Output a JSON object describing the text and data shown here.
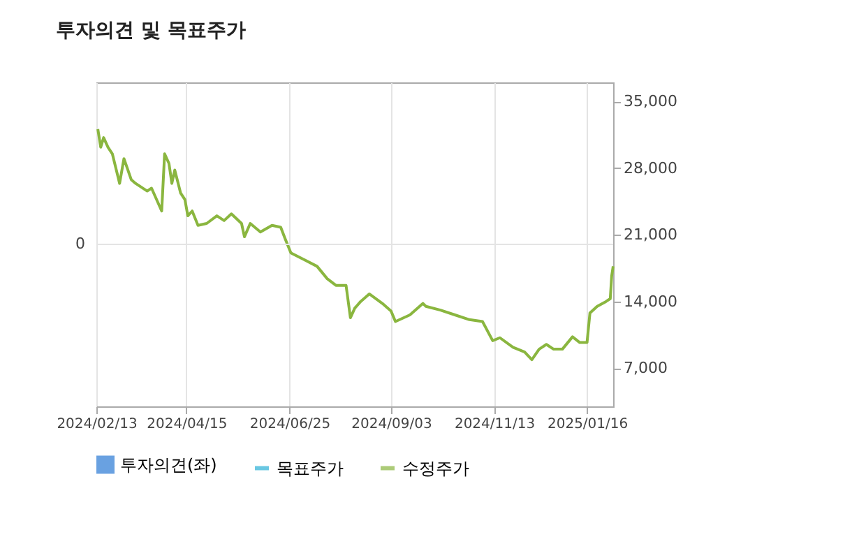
{
  "chart_data": {
    "type": "line",
    "title": "투자의견 및 목표주가",
    "x": [
      "2024-02-14",
      "2024-02-16",
      "2024-02-18",
      "2024-02-21",
      "2024-02-24",
      "2024-02-29",
      "2024-03-03",
      "2024-03-08",
      "2024-03-11",
      "2024-03-19",
      "2024-03-22",
      "2024-03-29",
      "2024-03-31",
      "2024-04-03",
      "2024-04-05",
      "2024-04-07",
      "2024-04-11",
      "2024-04-14",
      "2024-04-16",
      "2024-04-19",
      "2024-04-23",
      "2024-04-29",
      "2024-05-06",
      "2024-05-11",
      "2024-05-16",
      "2024-05-23",
      "2024-05-25",
      "2024-05-29",
      "2024-06-05",
      "2024-06-13",
      "2024-06-19",
      "2024-06-22",
      "2024-06-26",
      "2024-07-05",
      "2024-07-14",
      "2024-07-21",
      "2024-07-27",
      "2024-08-03",
      "2024-08-06",
      "2024-08-09",
      "2024-08-13",
      "2024-08-19",
      "2024-08-28",
      "2024-09-03",
      "2024-09-06",
      "2024-09-16",
      "2024-09-25",
      "2024-09-27",
      "2024-10-07",
      "2024-10-17",
      "2024-10-27",
      "2024-11-05",
      "2024-11-12",
      "2024-11-17",
      "2024-11-26",
      "2024-12-04",
      "2024-12-09",
      "2024-12-14",
      "2024-12-19",
      "2024-12-24",
      "2024-12-30",
      "2025-01-06",
      "2025-01-11",
      "2025-01-16",
      "2025-01-18",
      "2025-01-23",
      "2025-01-29",
      "2025-02-01",
      "2025-02-02",
      "2025-02-03"
    ],
    "series": [
      {
        "name": "투자의견(좌)",
        "type": "bar",
        "color": "#2a7ad5",
        "values": [
          null,
          null,
          null,
          null,
          null,
          null,
          null,
          null,
          null,
          null,
          null,
          null,
          null,
          null,
          null,
          null,
          null,
          null,
          null,
          null,
          null,
          null,
          null,
          null,
          null,
          null,
          null,
          null,
          null,
          null,
          null,
          null,
          null,
          null,
          null,
          null,
          null,
          null,
          null,
          null,
          null,
          null,
          null,
          null,
          null,
          null,
          null,
          null,
          null,
          null,
          null,
          null,
          null,
          null,
          null,
          null,
          null,
          null,
          null,
          null,
          null,
          null,
          null,
          null,
          null,
          null,
          null,
          null,
          null,
          null
        ]
      },
      {
        "name": "목표주가",
        "type": "line",
        "color": "#2ab0d6",
        "values": [
          null,
          null,
          null,
          null,
          null,
          null,
          null,
          null,
          null,
          null,
          null,
          null,
          null,
          null,
          null,
          null,
          null,
          null,
          null,
          null,
          null,
          null,
          null,
          null,
          null,
          null,
          null,
          null,
          null,
          null,
          null,
          null,
          null,
          null,
          null,
          null,
          null,
          null,
          null,
          null,
          null,
          null,
          null,
          null,
          null,
          null,
          null,
          null,
          null,
          null,
          null,
          null,
          null,
          null,
          null,
          null,
          null,
          null,
          null,
          null,
          null,
          null,
          null,
          null,
          null,
          null,
          null,
          null,
          null,
          null
        ]
      },
      {
        "name": "수정주가",
        "color": "#8ab63f",
        "values": [
          32100,
          30200,
          31200,
          30200,
          29500,
          26400,
          29000,
          26800,
          26400,
          25600,
          25900,
          23500,
          29500,
          28500,
          26400,
          27800,
          25400,
          24700,
          23000,
          23500,
          22000,
          22200,
          23000,
          22500,
          23200,
          22200,
          20800,
          22200,
          21300,
          22000,
          21800,
          20600,
          19100,
          18400,
          17700,
          16400,
          15700,
          15700,
          12300,
          13300,
          14000,
          14800,
          13800,
          13000,
          11900,
          12600,
          13800,
          13500,
          13100,
          12600,
          12100,
          11900,
          9900,
          10200,
          9200,
          8700,
          7900,
          9000,
          9500,
          9000,
          9000,
          10300,
          9700,
          9700,
          12800,
          13500,
          14000,
          14300,
          16700,
          17700
        ]
      }
    ],
    "xlim": [
      "2024-02-13",
      "2025-02-03"
    ],
    "xticks": [
      {
        "value": "2024-02-13",
        "label": "2024/02/13"
      },
      {
        "value": "2024-04-15",
        "label": "2024/04/15"
      },
      {
        "value": "2024-06-25",
        "label": "2024/06/25"
      },
      {
        "value": "2024-09-03",
        "label": "2024/09/03"
      },
      {
        "value": "2024-11-13",
        "label": "2024/11/13"
      },
      {
        "value": "2025-01-16",
        "label": "2025/01/16"
      }
    ],
    "ylim": [
      3000,
      37000
    ],
    "yticks": [
      {
        "value": 7000,
        "label": "7,000"
      },
      {
        "value": 14000,
        "label": "14,000"
      },
      {
        "value": 21000,
        "label": "21,000"
      },
      {
        "value": 28000,
        "label": "28,000"
      },
      {
        "value": 35000,
        "label": "35,000"
      }
    ],
    "annotations": [
      "0"
    ],
    "grid": true,
    "legend": "bottom"
  }
}
